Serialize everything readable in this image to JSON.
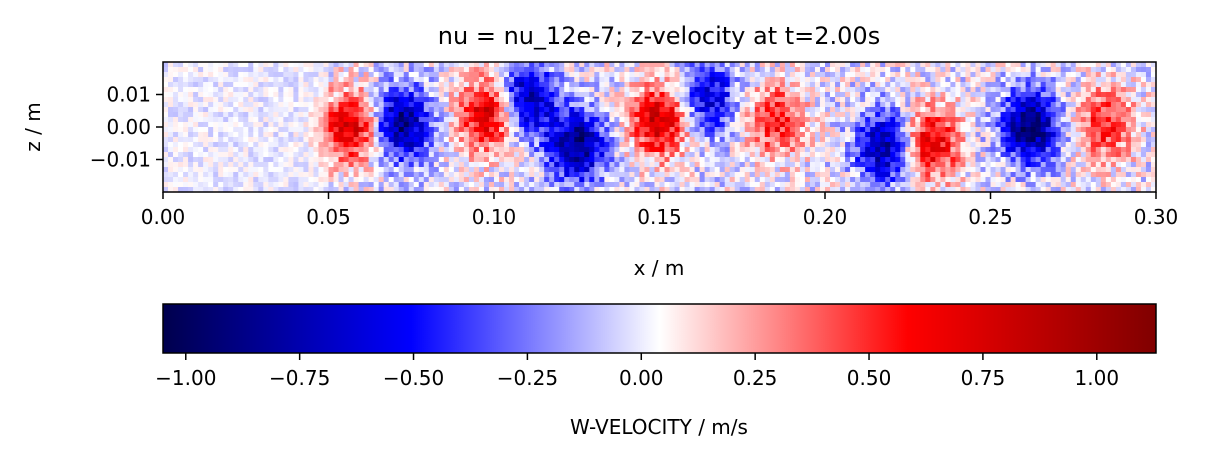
{
  "chart_data": [
    {
      "type": "heatmap",
      "title": "nu = nu_12e-7; z-velocity at t=2.00s",
      "xlabel": "x / m",
      "ylabel": "z / m",
      "xlim": [
        0.0,
        0.3
      ],
      "ylim": [
        -0.02,
        0.02
      ],
      "xticks": [
        "0.00",
        "0.05",
        "0.10",
        "0.15",
        "0.20",
        "0.25",
        "0.30"
      ],
      "xtick_values": [
        0.0,
        0.05,
        0.1,
        0.15,
        0.2,
        0.25,
        0.3
      ],
      "yticks": [
        "0.01",
        "0.00",
        "−0.01"
      ],
      "ytick_values": [
        0.01,
        0.0,
        -0.01
      ],
      "colormap": "seismic",
      "value_range": [
        -1.05,
        1.13
      ],
      "field_sketch": {
        "description_units": "W-velocity in m/s; approximate blob centers read from image",
        "x_center": [
          0.057,
          0.072,
          0.098,
          0.11,
          0.125,
          0.15,
          0.165,
          0.185,
          0.218,
          0.232,
          0.262,
          0.285
        ],
        "z_center": [
          0.0,
          0.001,
          0.004,
          0.009,
          -0.006,
          0.002,
          0.009,
          0.002,
          -0.006,
          -0.005,
          0.0,
          0.001
        ],
        "amplitude": [
          0.75,
          -0.9,
          0.8,
          -0.8,
          -0.9,
          0.8,
          -0.6,
          0.55,
          -0.8,
          0.75,
          -0.95,
          0.55
        ]
      },
      "grid": false
    },
    {
      "type": "colorbar",
      "label": "W-VELOCITY / m/s",
      "ticks": [
        "−1.00",
        "−0.75",
        "−0.50",
        "−0.25",
        "0.00",
        "0.25",
        "0.50",
        "0.75",
        "1.00"
      ],
      "tick_values": [
        -1.0,
        -0.75,
        -0.5,
        -0.25,
        0.0,
        0.25,
        0.5,
        0.75,
        1.0
      ],
      "range": [
        -1.05,
        1.13
      ],
      "colormap": "seismic",
      "colors": {
        "low": "#00004d",
        "mid_low": "#0000ff",
        "center": "#ffffff",
        "mid_high": "#ff0000",
        "high": "#800000"
      }
    }
  ]
}
